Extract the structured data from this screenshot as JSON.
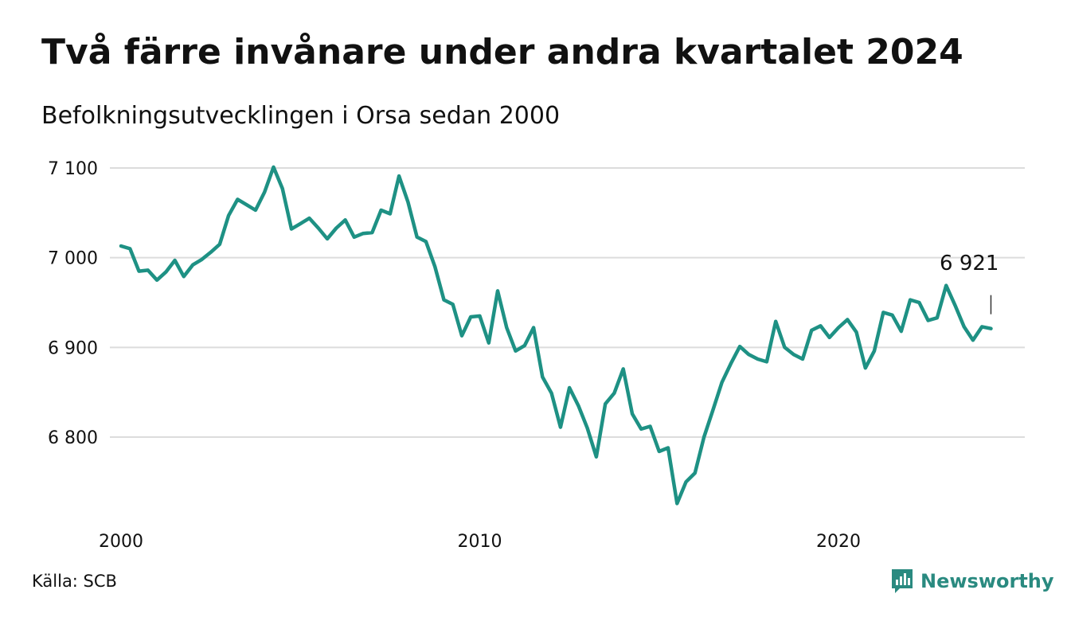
{
  "title": "Två färre invånare under andra kvartalet 2024",
  "subtitle": "Befolkningsutvecklingen i Orsa sedan 2000",
  "source": "Källa: SCB",
  "brand": {
    "name": "Newsworthy",
    "color": "#2a8a80",
    "icon": "bar-chart-logo-icon"
  },
  "chart_data": {
    "type": "line",
    "title": "Två färre invånare under andra kvartalet 2024",
    "subtitle": "Befolkningsutvecklingen i Orsa sedan 2000",
    "xlabel": "",
    "ylabel": "",
    "x_ticks": [
      "2000",
      "2010",
      "2020"
    ],
    "y_ticks": [
      7100,
      7000,
      6900,
      6800
    ],
    "y_tick_labels": [
      "7 100",
      "7 000",
      "6 900",
      "6 800"
    ],
    "ylim": [
      6710,
      7110
    ],
    "grid": true,
    "line_color": "#1e9184",
    "x_start": 2000,
    "x_step": 0.25,
    "end_label": "6 921",
    "series": [
      {
        "values": [
          7013,
          7010,
          6985,
          6986,
          6975,
          6984,
          6997,
          6979,
          6992,
          6998,
          7006,
          7015,
          7047,
          7065,
          7059,
          7053,
          7073,
          7101,
          7077,
          7032,
          7038,
          7044,
          7033,
          7021,
          7033,
          7042,
          7023,
          7027,
          7028,
          7053,
          7049,
          7091,
          7062,
          7023,
          7018,
          6990,
          6953,
          6948,
          6913,
          6934,
          6935,
          6905,
          6963,
          6922,
          6896,
          6902,
          6922,
          6867,
          6849,
          6811,
          6855,
          6835,
          6810,
          6778,
          6837,
          6849,
          6876,
          6826,
          6809,
          6812,
          6784,
          6788,
          6726,
          6750,
          6760,
          6800,
          6830,
          6861,
          6882,
          6901,
          6892,
          6887,
          6884,
          6929,
          6900,
          6892,
          6887,
          6919,
          6924,
          6911,
          6922,
          6931,
          6917,
          6877,
          6896,
          6939,
          6936,
          6918,
          6953,
          6950,
          6930,
          6933,
          6969,
          6947,
          6923,
          6908,
          6923,
          6921
        ]
      }
    ]
  }
}
